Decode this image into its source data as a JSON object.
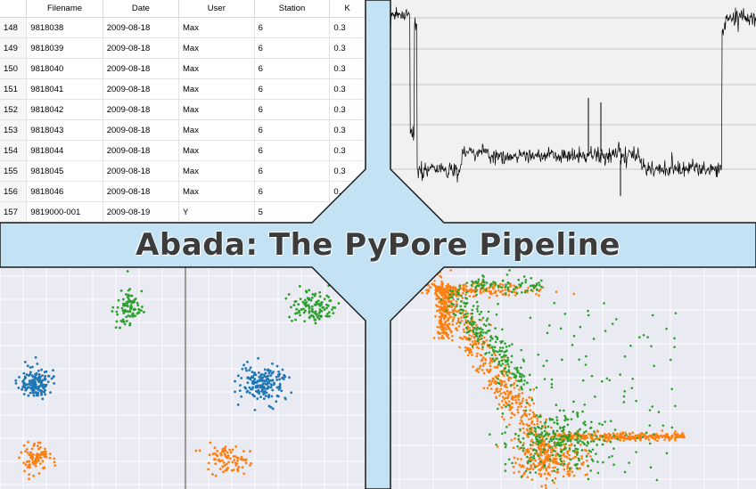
{
  "title": "Abada: The PyPore Pipeline",
  "table": {
    "headers": [
      "",
      "Filename",
      "Date",
      "User",
      "Station",
      "K"
    ],
    "rows": [
      [
        "148",
        "9818038",
        "2009-08-18",
        "Max",
        "6",
        "0.3"
      ],
      [
        "149",
        "9818039",
        "2009-08-18",
        "Max",
        "6",
        "0.3"
      ],
      [
        "150",
        "9818040",
        "2009-08-18",
        "Max",
        "6",
        "0.3"
      ],
      [
        "151",
        "9818041",
        "2009-08-18",
        "Max",
        "6",
        "0.3"
      ],
      [
        "152",
        "9818042",
        "2009-08-18",
        "Max",
        "6",
        "0.3"
      ],
      [
        "153",
        "9818043",
        "2009-08-18",
        "Max",
        "6",
        "0.3"
      ],
      [
        "154",
        "9818044",
        "2009-08-18",
        "Max",
        "6",
        "0.3"
      ],
      [
        "155",
        "9818045",
        "2009-08-18",
        "Max",
        "6",
        "0.3"
      ],
      [
        "156",
        "9818046",
        "2009-08-18",
        "Max",
        "6",
        "0."
      ],
      [
        "157",
        "9819000-001",
        "2009-08-19",
        "Y",
        "5",
        ""
      ]
    ]
  },
  "colors": {
    "blue": "#1f77b4",
    "orange": "#ff7f0e",
    "green": "#2ca02c",
    "background": "#c3e3f5",
    "trace": "#000000"
  }
}
